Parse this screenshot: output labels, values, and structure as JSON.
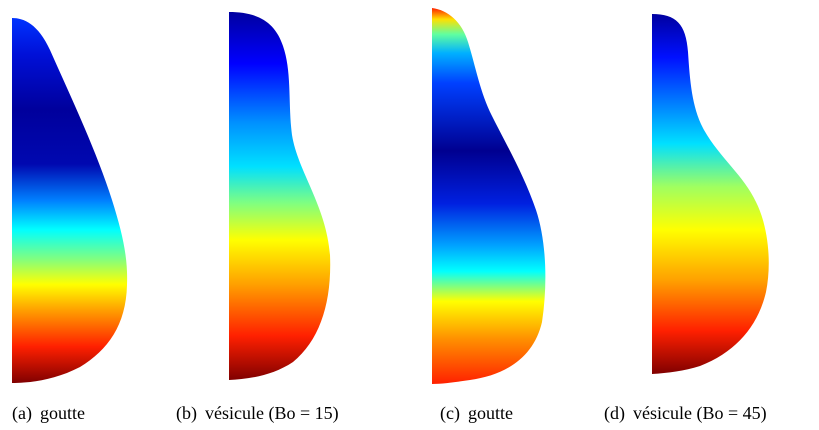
{
  "panels": [
    {
      "tag": "(a)",
      "caption": "goutte"
    },
    {
      "tag": "(b)",
      "caption": "vésicule (Bo = 15)"
    },
    {
      "tag": "(c)",
      "caption": "goutte"
    },
    {
      "tag": "(d)",
      "caption": "vésicule (Bo = 45)"
    }
  ],
  "colormap": "jet"
}
